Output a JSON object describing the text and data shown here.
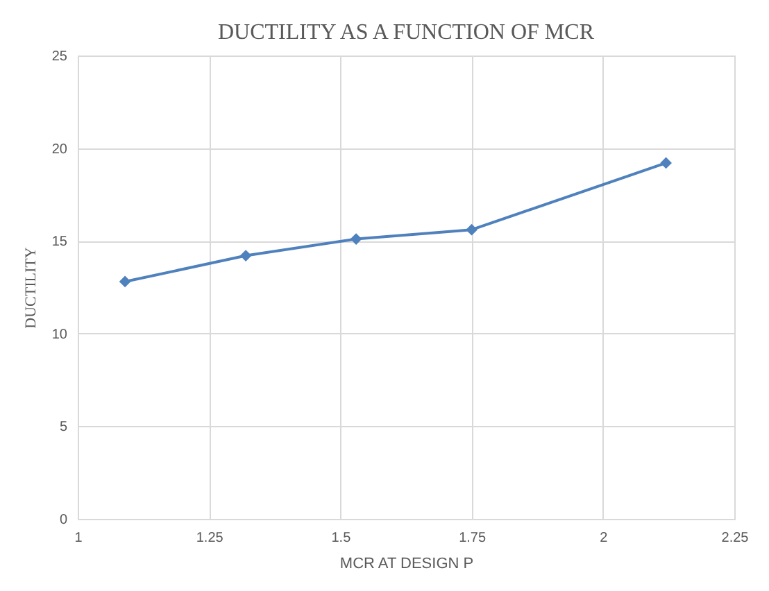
{
  "chart_data": {
    "type": "line",
    "title": "DUCTILITY AS A FUNCTION OF MCR",
    "xlabel": "MCR AT DESIGN P",
    "ylabel": "DUCTILITY",
    "x": [
      1.09,
      1.32,
      1.53,
      1.75,
      2.12
    ],
    "series": [
      {
        "color": "#4f81bd",
        "values": [
          12.8,
          14.2,
          15.1,
          15.6,
          19.2
        ]
      }
    ],
    "xlim": [
      1,
      2.25
    ],
    "xticks": [
      1,
      1.25,
      1.5,
      1.75,
      2,
      2.25
    ],
    "ylim": [
      0,
      25
    ],
    "yticks": [
      0,
      5,
      10,
      15,
      20,
      25
    ],
    "grid": true,
    "marker": "diamond",
    "line_style": "solid"
  }
}
